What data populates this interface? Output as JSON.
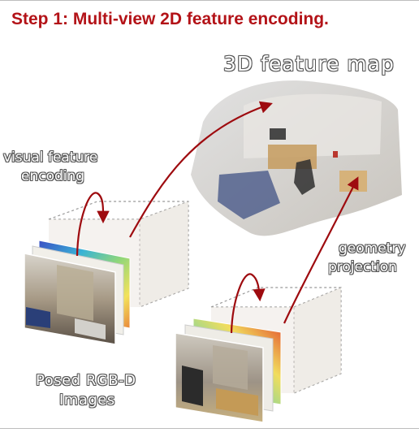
{
  "title": "Step 1: Multi-view 2D feature encoding.",
  "labels": {
    "feature_map": "3D feature map",
    "encoding_line1": "visual feature",
    "encoding_line2": "encoding",
    "projection_line1": "geometry",
    "projection_line2": "projection",
    "images_line1": "Posed RGB-D",
    "images_line2": "Images"
  },
  "colors": {
    "title": "#b31217",
    "arrow": "#9e0b0f",
    "box_edge": "#9a9a9a"
  }
}
